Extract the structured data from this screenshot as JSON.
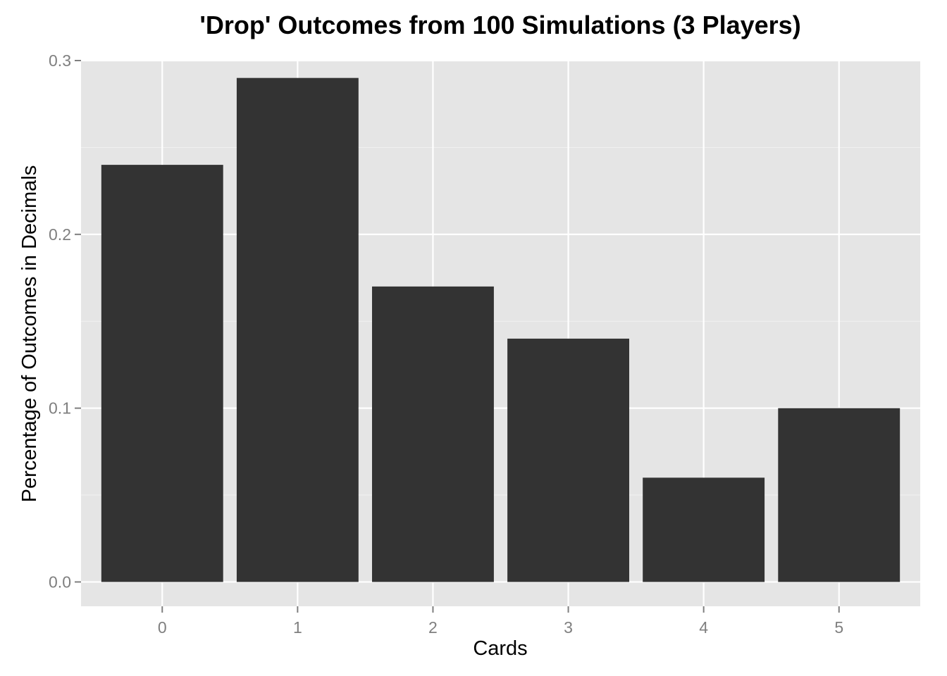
{
  "chart_data": {
    "type": "bar",
    "title": "'Drop' Outcomes from 100 Simulations (3 Players)",
    "xlabel": "Cards",
    "ylabel": "Percentage of Outcomes in Decimals",
    "categories": [
      "0",
      "1",
      "2",
      "3",
      "4",
      "5"
    ],
    "values": [
      0.24,
      0.29,
      0.17,
      0.14,
      0.06,
      0.1
    ],
    "ylim": [
      -0.014,
      0.3
    ],
    "yticks": [
      0.0,
      0.1,
      0.2,
      0.3
    ],
    "ytick_labels": [
      "0.0",
      "0.1",
      "0.2",
      "0.3"
    ],
    "grid": true,
    "legend": "none",
    "colors": {
      "bar": "#333333",
      "panel_background": "#e5e5e5",
      "grid_major": "#ffffff",
      "grid_minor": "#f2f2f2",
      "tick_mark": "#7f7f7f"
    }
  }
}
